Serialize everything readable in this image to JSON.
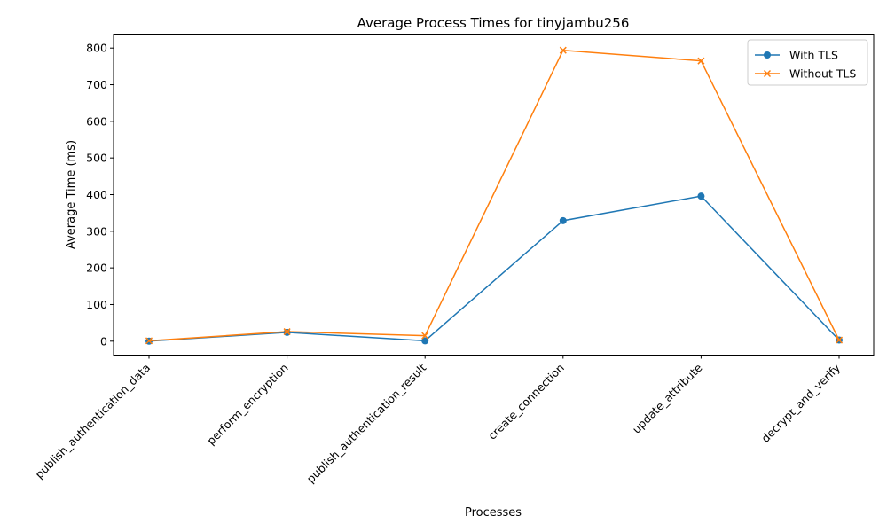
{
  "chart_data": {
    "type": "line",
    "title": "Average Process Times for tinyjambu256",
    "xlabel": "Processes",
    "ylabel": "Average Time (ms)",
    "categories": [
      "publish_authentication_data",
      "perform_encryption",
      "publish_authentication_result",
      "create_connection",
      "update_attribute",
      "decrypt_and_verify"
    ],
    "ylim": [
      -38,
      838
    ],
    "yticks": [
      0,
      100,
      200,
      300,
      400,
      500,
      600,
      700,
      800
    ],
    "grid": false,
    "legend_position": "top-right",
    "series": [
      {
        "name": "With TLS",
        "color": "#1f77b4",
        "marker": "circle",
        "values": [
          0,
          24,
          1,
          329,
          396,
          3
        ]
      },
      {
        "name": "Without TLS",
        "color": "#ff7f0e",
        "marker": "x",
        "values": [
          1,
          26,
          15,
          794,
          765,
          3
        ]
      }
    ]
  }
}
